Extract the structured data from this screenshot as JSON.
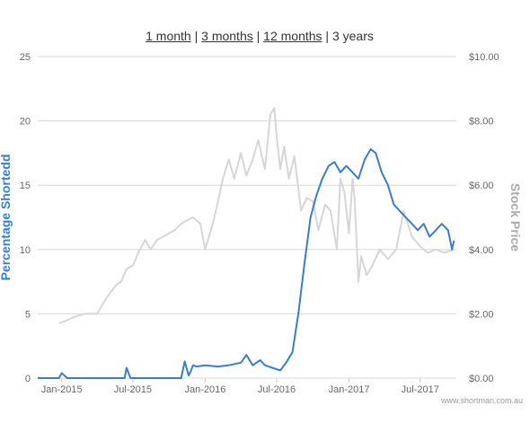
{
  "range_nav": {
    "items": [
      {
        "label": "1 month",
        "link": true
      },
      {
        "label": "3 months",
        "link": true
      },
      {
        "label": "12 months",
        "link": true
      },
      {
        "label": "3 years",
        "link": false
      }
    ]
  },
  "credit": "www.shortman.com.au",
  "colors": {
    "short": "#3a7dcc",
    "price": "#d6d6d6",
    "grid": "#d8d8d8",
    "axis_left": "#3a7dcc",
    "axis_right": "#aaaaaa"
  },
  "chart_data": {
    "type": "line",
    "title": "",
    "xlabel": "",
    "ylabel": "Percentage Shortedd",
    "ylabel_right": "Stock Price",
    "x_ticks": [
      "Jan-2015",
      "Jul-2015",
      "Jan-2016",
      "Jul-2016",
      "Jan-2017",
      "Jul-2017"
    ],
    "x_range": [
      "2014-11-01",
      "2017-10-01"
    ],
    "y_left": {
      "ticks": [
        "0",
        "5",
        "10",
        "15",
        "20",
        "25"
      ],
      "range": [
        0,
        25
      ]
    },
    "y_right": {
      "ticks": [
        "$0.00",
        "$2.00",
        "$4.00",
        "$6.00",
        "$8.00",
        "$10.00"
      ],
      "range": [
        0,
        10
      ]
    },
    "grid": true,
    "legend": "none",
    "series": [
      {
        "name": "Percentage Shorted",
        "axis": "left",
        "x": [
          "2014-11-01",
          "2014-12-25",
          "2015-01-01",
          "2015-01-15",
          "2015-02-15",
          "2015-06-10",
          "2015-06-15",
          "2015-06-25",
          "2015-07-01",
          "2015-11-01",
          "2015-11-10",
          "2015-11-20",
          "2015-11-25",
          "2015-12-01",
          "2015-12-10",
          "2016-01-01",
          "2016-02-01",
          "2016-03-01",
          "2016-04-01",
          "2016-04-15",
          "2016-05-01",
          "2016-05-20",
          "2016-06-01",
          "2016-06-20",
          "2016-07-10",
          "2016-07-25",
          "2016-08-10",
          "2016-08-25",
          "2016-09-10",
          "2016-09-25",
          "2016-10-10",
          "2016-10-25",
          "2016-11-10",
          "2016-11-25",
          "2016-12-10",
          "2016-12-25",
          "2017-01-10",
          "2017-01-25",
          "2017-02-10",
          "2017-02-25",
          "2017-03-10",
          "2017-03-25",
          "2017-04-10",
          "2017-04-25",
          "2017-05-10",
          "2017-05-25",
          "2017-06-10",
          "2017-06-25",
          "2017-07-10",
          "2017-07-25",
          "2017-08-10",
          "2017-08-25",
          "2017-09-10",
          "2017-09-20",
          "2017-09-25"
        ],
        "values": [
          0.0,
          0.0,
          0.4,
          0.0,
          0.0,
          0.0,
          0.8,
          0.0,
          0.0,
          0.0,
          1.3,
          0.2,
          0.5,
          1.0,
          0.9,
          1.0,
          0.9,
          1.0,
          1.2,
          1.8,
          1.0,
          1.4,
          1.0,
          0.8,
          0.6,
          1.2,
          2.0,
          5.0,
          9.0,
          12.5,
          14.2,
          15.5,
          16.5,
          16.8,
          16.0,
          16.5,
          16.0,
          15.5,
          17.0,
          17.8,
          17.5,
          16.0,
          15.0,
          13.5,
          13.0,
          12.5,
          12.0,
          11.5,
          12.0,
          11.0,
          11.5,
          12.0,
          11.5,
          10.0,
          10.7
        ]
      },
      {
        "name": "Stock Price",
        "axis": "right",
        "x": [
          "2014-12-25",
          "2015-01-15",
          "2015-02-01",
          "2015-03-01",
          "2015-04-01",
          "2015-04-20",
          "2015-05-01",
          "2015-05-20",
          "2015-06-01",
          "2015-06-15",
          "2015-07-01",
          "2015-07-15",
          "2015-08-01",
          "2015-08-15",
          "2015-09-01",
          "2015-10-01",
          "2015-10-15",
          "2015-11-01",
          "2015-11-15",
          "2015-12-01",
          "2015-12-20",
          "2016-01-01",
          "2016-01-20",
          "2016-02-01",
          "2016-02-15",
          "2016-03-01",
          "2016-03-15",
          "2016-04-01",
          "2016-04-15",
          "2016-05-01",
          "2016-05-15",
          "2016-06-01",
          "2016-06-15",
          "2016-06-25",
          "2016-07-01",
          "2016-07-10",
          "2016-07-20",
          "2016-08-01",
          "2016-08-15",
          "2016-09-01",
          "2016-09-15",
          "2016-10-01",
          "2016-10-15",
          "2016-11-01",
          "2016-11-15",
          "2016-12-01",
          "2016-12-10",
          "2016-12-20",
          "2017-01-01",
          "2017-01-10",
          "2017-01-15",
          "2017-01-25",
          "2017-02-01",
          "2017-02-15",
          "2017-03-01",
          "2017-03-20",
          "2017-04-10",
          "2017-05-01",
          "2017-05-20",
          "2017-06-10",
          "2017-07-01",
          "2017-07-20",
          "2017-08-10",
          "2017-09-01",
          "2017-09-25"
        ],
        "values": [
          1.7,
          1.8,
          1.9,
          2.0,
          2.0,
          2.4,
          2.6,
          2.9,
          3.0,
          3.4,
          3.5,
          3.9,
          4.3,
          4.0,
          4.3,
          4.5,
          4.6,
          4.8,
          4.9,
          5.0,
          4.8,
          4.0,
          4.8,
          5.4,
          6.2,
          6.8,
          6.2,
          7.0,
          6.3,
          6.8,
          7.4,
          6.5,
          8.2,
          8.4,
          7.5,
          6.5,
          7.2,
          6.2,
          6.9,
          5.2,
          5.6,
          5.5,
          4.6,
          5.4,
          5.2,
          4.0,
          6.2,
          5.8,
          4.5,
          6.2,
          5.6,
          3.0,
          3.8,
          3.2,
          3.5,
          4.0,
          3.7,
          4.0,
          5.2,
          4.4,
          4.1,
          3.9,
          4.0,
          3.9,
          4.0
        ]
      }
    ]
  }
}
